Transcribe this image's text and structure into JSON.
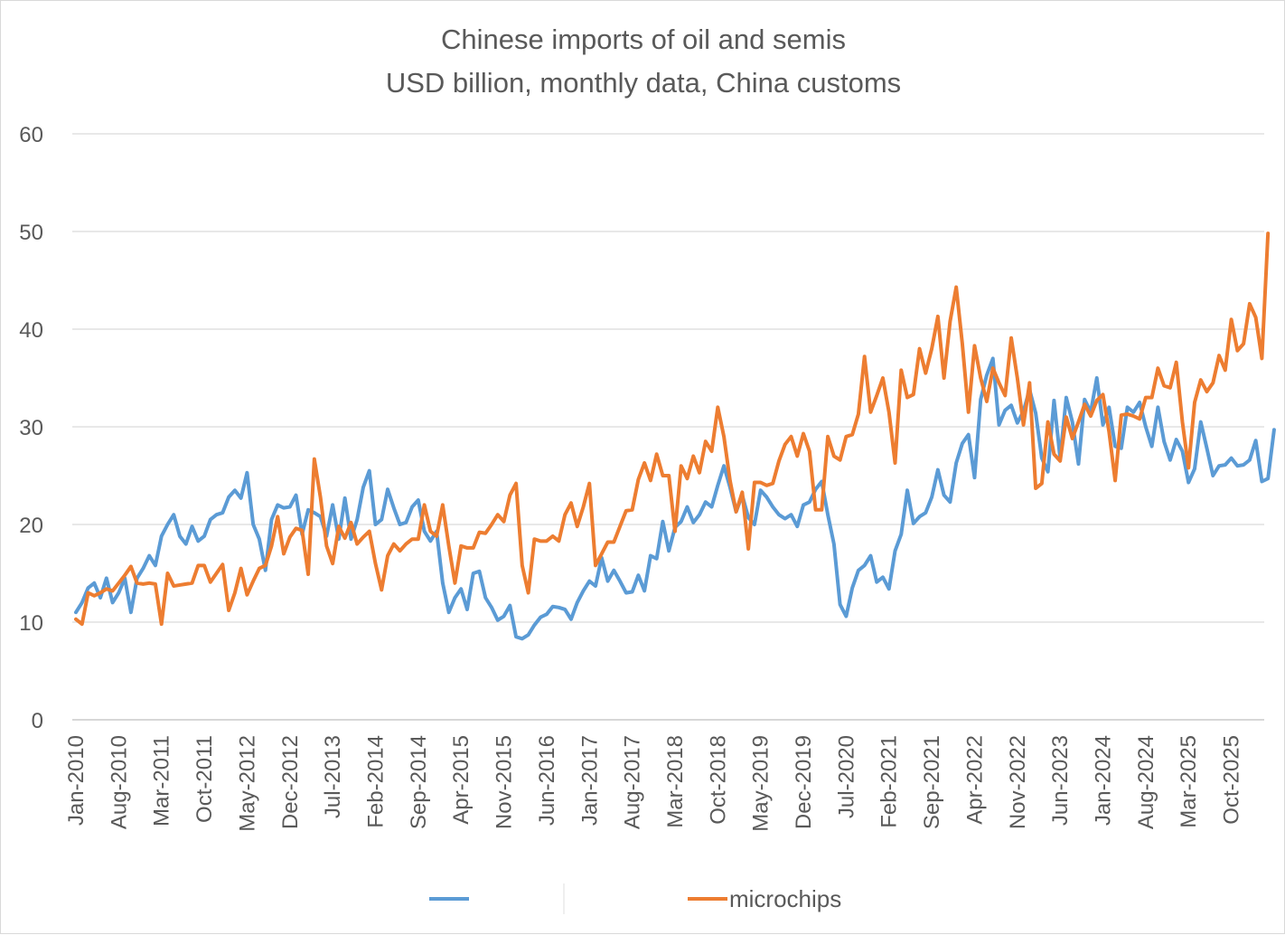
{
  "chart_data": {
    "type": "line",
    "title": "Chinese imports of oil and semis",
    "subtitle": "USD billion, monthly data,  China customs",
    "xlabel": "",
    "ylabel": "",
    "ylim": [
      0,
      60
    ],
    "yticks": [
      0,
      10,
      20,
      30,
      40,
      50,
      60
    ],
    "grid": true,
    "legend": "bottom",
    "x_tick_labels": [
      "Jan-2010",
      "Aug-2010",
      "Mar-2011",
      "Oct-2011",
      "May-2012",
      "Dec-2012",
      "Jul-2013",
      "Feb-2014",
      "Sep-2014",
      "Apr-2015",
      "Nov-2015",
      "Jun-2016",
      "Jan-2017",
      "Aug-2017",
      "Mar-2018",
      "Oct-2018",
      "May-2019",
      "Dec-2019",
      "Jul-2020",
      "Feb-2021",
      "Sep-2021",
      "Apr-2022",
      "Nov-2022",
      "Jun-2023",
      "Jan-2024",
      "Aug-2024",
      "Mar-2025",
      "Oct-2025"
    ],
    "x_start": "Jan-2010",
    "x_end": "Feb-2026",
    "series": [
      {
        "name": "",
        "color": "#5b9bd5",
        "values": [
          11.0,
          12.0,
          13.5,
          14.0,
          12.5,
          14.5,
          12.0,
          13.0,
          14.5,
          11.0,
          14.5,
          15.5,
          16.8,
          15.8,
          18.8,
          20.0,
          21.0,
          18.8,
          18.0,
          19.8,
          18.3,
          18.8,
          20.5,
          21.0,
          21.2,
          22.8,
          23.5,
          22.7,
          25.3,
          20.0,
          18.5,
          15.3,
          20.5,
          22.0,
          21.7,
          21.8,
          23.0,
          19.0,
          21.5,
          21.2,
          20.8,
          18.8,
          22.0,
          18.5,
          22.7,
          18.5,
          20.5,
          23.8,
          25.5,
          20.0,
          20.5,
          23.6,
          21.7,
          20.0,
          20.2,
          21.8,
          22.5,
          19.3,
          18.3,
          19.3,
          14.0,
          11.0,
          12.5,
          13.4,
          11.3,
          15.0,
          15.2,
          12.5,
          11.5,
          10.2,
          10.6,
          11.7,
          8.5,
          8.3,
          8.7,
          9.7,
          10.5,
          10.8,
          11.6,
          11.5,
          11.3,
          10.3,
          12.0,
          13.2,
          14.2,
          13.7,
          16.6,
          14.2,
          15.3,
          14.2,
          13.0,
          13.1,
          14.8,
          13.2,
          16.8,
          16.5,
          20.3,
          17.3,
          19.7,
          20.3,
          21.8,
          20.2,
          21.0,
          22.3,
          21.8,
          24.0,
          26.0,
          23.8,
          21.3,
          23.0,
          20.7,
          20.0,
          23.5,
          22.8,
          21.8,
          21.0,
          20.6,
          21.0,
          19.8,
          22.0,
          22.3,
          23.6,
          24.4,
          21.0,
          18.0,
          11.8,
          10.6,
          13.5,
          15.3,
          15.8,
          16.8,
          14.1,
          14.6,
          13.4,
          17.3,
          19.0,
          23.5,
          20.1,
          20.8,
          21.2,
          22.8,
          25.6,
          23.0,
          22.3,
          26.3,
          28.3,
          29.2,
          24.8,
          32.8,
          35.3,
          37.0,
          30.2,
          31.7,
          32.2,
          30.4,
          31.6,
          33.8,
          31.4,
          26.8,
          25.4,
          32.7,
          26.8,
          33.0,
          30.5,
          26.2,
          32.8,
          31.5,
          35.0,
          30.2,
          32.0,
          28.0,
          27.8,
          32.0,
          31.5,
          32.5,
          30.0,
          28.0,
          32.0,
          28.5,
          26.6,
          28.7,
          27.5,
          24.3,
          25.7,
          30.5,
          27.8,
          25.0,
          26.0,
          26.1,
          26.8,
          26.0,
          26.1,
          26.6,
          28.6,
          24.4,
          24.7,
          29.7
        ]
      },
      {
        "name": "microchips",
        "color": "#ed7d31",
        "values": [
          10.3,
          9.8,
          13.0,
          12.7,
          13.0,
          13.4,
          13.2,
          14.0,
          14.8,
          15.7,
          14.0,
          13.9,
          14.0,
          13.9,
          9.8,
          15.0,
          13.7,
          13.8,
          13.9,
          14.0,
          15.8,
          15.8,
          14.1,
          15.0,
          15.9,
          11.2,
          13.0,
          15.5,
          12.8,
          14.2,
          15.5,
          15.8,
          17.8,
          20.8,
          17.0,
          18.7,
          19.6,
          19.4,
          14.9,
          26.7,
          22.8,
          17.8,
          16.0,
          19.8,
          18.6,
          20.2,
          18.0,
          18.7,
          19.3,
          16.0,
          13.3,
          16.8,
          18.0,
          17.3,
          18.0,
          18.5,
          18.5,
          22.0,
          19.3,
          18.8,
          22.0,
          17.8,
          14.0,
          17.8,
          17.6,
          17.6,
          19.2,
          19.1,
          20.0,
          21.0,
          20.3,
          23.0,
          24.2,
          15.8,
          13.0,
          18.5,
          18.3,
          18.3,
          18.8,
          18.3,
          21.0,
          22.2,
          19.8,
          21.8,
          24.2,
          15.8,
          17.0,
          18.2,
          18.2,
          19.8,
          21.4,
          21.5,
          24.6,
          26.3,
          24.5,
          27.2,
          25.0,
          25.0,
          19.3,
          26.0,
          24.7,
          27.0,
          25.3,
          28.5,
          27.5,
          32.0,
          29.0,
          24.5,
          21.3,
          23.3,
          17.5,
          24.3,
          24.3,
          24.0,
          24.2,
          26.5,
          28.2,
          29.0,
          27.0,
          29.3,
          27.5,
          21.5,
          21.5,
          29.0,
          27.0,
          26.6,
          29.0,
          29.2,
          31.3,
          37.2,
          31.5,
          33.2,
          35.0,
          31.5,
          26.3,
          35.8,
          33.0,
          33.3,
          38.0,
          35.5,
          38.0,
          41.3,
          35.0,
          40.8,
          44.3,
          38.5,
          31.5,
          38.3,
          35.0,
          32.6,
          36.0,
          34.5,
          33.2,
          39.1,
          35.0,
          30.2,
          34.5,
          23.7,
          24.2,
          30.5,
          27.2,
          26.5,
          31.0,
          28.8,
          30.5,
          32.3,
          31.1,
          32.7,
          33.3,
          29.5,
          24.5,
          31.2,
          31.3,
          31.1,
          30.8,
          33.0,
          33.0,
          36.0,
          34.2,
          34.0,
          36.6,
          30.5,
          25.8,
          32.5,
          34.8,
          33.6,
          34.5,
          37.3,
          35.8,
          41.0,
          37.8,
          38.5,
          42.6,
          41.2,
          37.0,
          49.8
        ]
      }
    ]
  }
}
